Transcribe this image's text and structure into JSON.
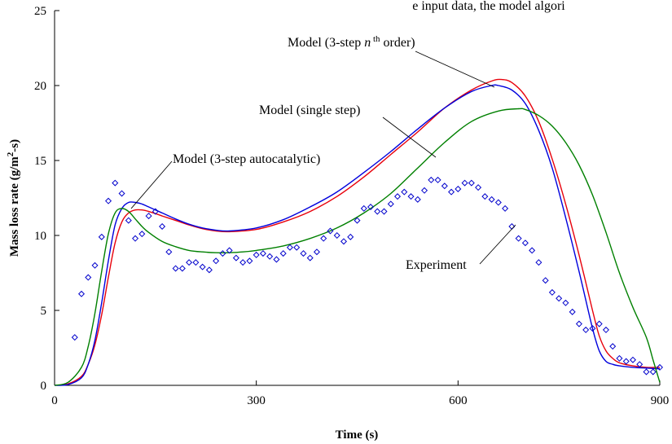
{
  "chart_data": {
    "type": "line",
    "title": "",
    "xlabel": "Time (s)",
    "ylabel_parts": {
      "base": "Mass loss rate (g/m",
      "sup": "2",
      "end": "-s)"
    },
    "xlim": [
      0,
      900
    ],
    "ylim": [
      0,
      25
    ],
    "x_ticks": [
      0,
      300,
      600,
      900
    ],
    "y_ticks": [
      0,
      5,
      10,
      15,
      20,
      25
    ],
    "grid": false,
    "colors": {
      "three_step_nth": "#e8000b",
      "three_step_auto": "#0000dd",
      "single_step": "#008000",
      "experiment": "#0000cc"
    },
    "series": [
      {
        "key": "three_step_nth",
        "style": "line",
        "x": [
          0,
          20,
          40,
          50,
          60,
          70,
          80,
          90,
          100,
          110,
          120,
          130,
          140,
          160,
          180,
          200,
          220,
          240,
          260,
          300,
          340,
          380,
          420,
          460,
          500,
          540,
          580,
          620,
          650,
          665,
          680,
          700,
          720,
          740,
          760,
          780,
          800,
          810,
          820,
          830,
          840,
          860,
          880,
          900
        ],
        "values": [
          0,
          0.1,
          0.6,
          1.4,
          2.7,
          4.7,
          7.2,
          9.5,
          10.9,
          11.5,
          11.7,
          11.7,
          11.6,
          11.3,
          11.0,
          10.7,
          10.45,
          10.3,
          10.25,
          10.4,
          10.9,
          11.6,
          12.6,
          13.9,
          15.4,
          16.9,
          18.5,
          19.7,
          20.3,
          20.4,
          20.2,
          19.3,
          17.6,
          15.1,
          12.1,
          8.7,
          5.0,
          3.3,
          2.3,
          1.8,
          1.5,
          1.3,
          1.2,
          1.2
        ]
      },
      {
        "key": "three_step_auto",
        "style": "line",
        "x": [
          0,
          20,
          40,
          50,
          60,
          70,
          80,
          90,
          100,
          110,
          120,
          130,
          140,
          160,
          180,
          200,
          220,
          240,
          260,
          300,
          340,
          380,
          420,
          460,
          500,
          540,
          580,
          620,
          650,
          660,
          680,
          700,
          720,
          740,
          760,
          780,
          800,
          810,
          820,
          830,
          840,
          860,
          880,
          900
        ],
        "values": [
          0,
          0.05,
          0.5,
          1.4,
          3.0,
          5.5,
          8.3,
          10.7,
          11.8,
          12.2,
          12.2,
          12.1,
          11.9,
          11.5,
          11.1,
          10.75,
          10.5,
          10.35,
          10.3,
          10.5,
          11.05,
          11.9,
          12.9,
          14.2,
          15.6,
          17.1,
          18.5,
          19.6,
          20.0,
          20.0,
          19.7,
          18.8,
          17.0,
          14.5,
          11.2,
          7.6,
          3.8,
          2.3,
          1.6,
          1.4,
          1.3,
          1.2,
          1.15,
          1.1
        ]
      },
      {
        "key": "single_step",
        "style": "line",
        "x": [
          0,
          20,
          40,
          50,
          60,
          70,
          80,
          90,
          100,
          110,
          120,
          130,
          140,
          160,
          180,
          200,
          220,
          240,
          260,
          280,
          300,
          340,
          380,
          420,
          460,
          500,
          540,
          580,
          620,
          660,
          690,
          700,
          720,
          740,
          760,
          780,
          800,
          820,
          840,
          860,
          880,
          890,
          900
        ],
        "values": [
          0,
          0.2,
          1.2,
          2.6,
          4.8,
          7.6,
          10.1,
          11.5,
          11.8,
          11.6,
          11.1,
          10.6,
          10.2,
          9.6,
          9.25,
          9.0,
          8.9,
          8.85,
          8.85,
          8.9,
          9.0,
          9.3,
          9.8,
          10.5,
          11.5,
          12.8,
          14.5,
          16.2,
          17.6,
          18.3,
          18.45,
          18.4,
          18.0,
          17.3,
          16.2,
          14.7,
          12.7,
          10.2,
          7.5,
          5.2,
          3.2,
          1.7,
          0.2
        ]
      },
      {
        "key": "experiment",
        "style": "markers",
        "x": [
          30,
          40,
          50,
          60,
          70,
          80,
          90,
          100,
          110,
          120,
          130,
          140,
          150,
          160,
          170,
          180,
          190,
          200,
          210,
          220,
          230,
          240,
          250,
          260,
          270,
          280,
          290,
          300,
          310,
          320,
          330,
          340,
          350,
          360,
          370,
          380,
          390,
          400,
          410,
          420,
          430,
          440,
          450,
          460,
          470,
          480,
          490,
          500,
          510,
          520,
          530,
          540,
          550,
          560,
          570,
          580,
          590,
          600,
          610,
          620,
          630,
          640,
          650,
          660,
          670,
          680,
          690,
          700,
          710,
          720,
          730,
          740,
          750,
          760,
          770,
          780,
          790,
          800,
          810,
          820,
          830,
          840,
          850,
          860,
          870,
          880,
          890,
          900
        ],
        "values": [
          3.2,
          6.1,
          7.2,
          8.0,
          9.9,
          12.3,
          13.5,
          12.8,
          11.0,
          9.8,
          10.1,
          11.3,
          11.6,
          10.6,
          8.9,
          7.8,
          7.8,
          8.2,
          8.2,
          7.9,
          7.7,
          8.3,
          8.8,
          9.0,
          8.5,
          8.2,
          8.3,
          8.7,
          8.8,
          8.6,
          8.4,
          8.8,
          9.2,
          9.2,
          8.8,
          8.5,
          8.9,
          9.8,
          10.3,
          10.0,
          9.6,
          9.9,
          11.0,
          11.8,
          11.9,
          11.6,
          11.6,
          12.1,
          12.6,
          12.9,
          12.6,
          12.4,
          13.0,
          13.7,
          13.7,
          13.3,
          12.9,
          13.1,
          13.5,
          13.5,
          13.2,
          12.6,
          12.4,
          12.2,
          11.8,
          10.6,
          9.8,
          9.5,
          9.0,
          8.2,
          7.0,
          6.2,
          5.8,
          5.5,
          4.9,
          4.1,
          3.7,
          3.8,
          4.1,
          3.7,
          2.6,
          1.8,
          1.6,
          1.7,
          1.4,
          0.9,
          0.9,
          1.2
        ]
      }
    ],
    "annotations": [
      {
        "key": "three_step_nth",
        "parts": [
          "Model (3-step ",
          "n",
          " th",
          " order)"
        ]
      },
      {
        "key": "single_step",
        "text": "Model (single step)"
      },
      {
        "key": "three_step_auto",
        "text": "Model (3-step autocatalytic)"
      },
      {
        "key": "experiment",
        "text": "Experiment"
      }
    ],
    "clipped_top_text": "e input data, the model algori"
  }
}
